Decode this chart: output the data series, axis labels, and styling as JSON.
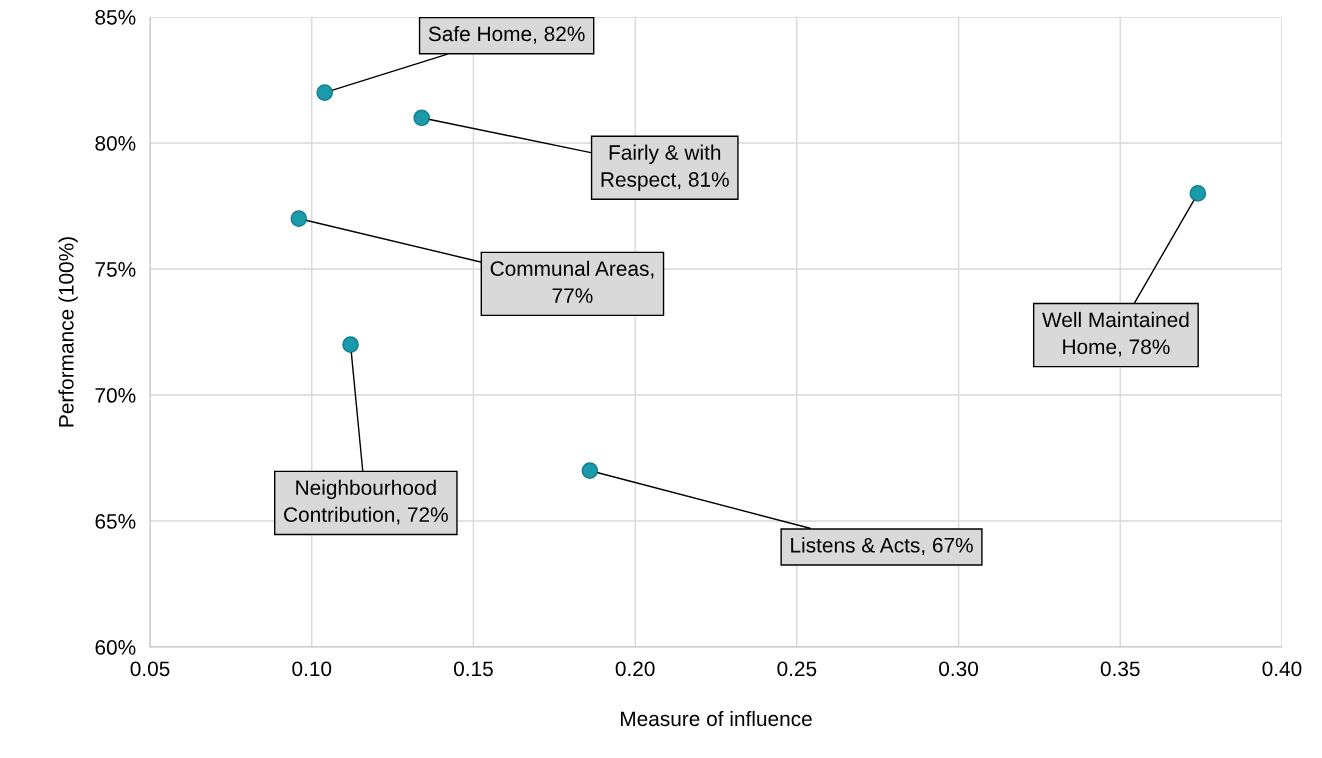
{
  "chart_data": {
    "type": "scatter",
    "xlabel": "Measure of influence",
    "ylabel": "Performance (100%)",
    "x": [
      0.104,
      0.134,
      0.096,
      0.112,
      0.186,
      0.374
    ],
    "series": [
      {
        "color": "#1b9aaa",
        "values": [
          82,
          81,
          77,
          72,
          67,
          78
        ]
      }
    ],
    "xlim": [
      0.05,
      0.4
    ],
    "xticks": [
      {
        "value": 0.05,
        "label": "0.05"
      },
      {
        "value": 0.1,
        "label": "0.10"
      },
      {
        "value": 0.15,
        "label": "0.15"
      },
      {
        "value": 0.2,
        "label": "0.20"
      },
      {
        "value": 0.25,
        "label": "0.25"
      },
      {
        "value": 0.3,
        "label": "0.30"
      },
      {
        "value": 0.35,
        "label": "0.35"
      },
      {
        "value": 0.4,
        "label": "0.40"
      }
    ],
    "ylim": [
      60,
      85
    ],
    "yticks": [
      {
        "value": 60,
        "label": "60%"
      },
      {
        "value": 65,
        "label": "65%"
      },
      {
        "value": 70,
        "label": "70%"
      },
      {
        "value": 75,
        "label": "75%"
      },
      {
        "value": 80,
        "label": "80%"
      },
      {
        "value": 85,
        "label": "85%"
      }
    ],
    "grid": true,
    "marker": "circle",
    "annotations": [
      {
        "text": "Safe Home, 82%",
        "x": 0.104,
        "y": 82
      },
      {
        "text": "Fairly & with\nRespect, 81%",
        "x": 0.134,
        "y": 81
      },
      {
        "text": "Communal Areas,\n77%",
        "x": 0.096,
        "y": 77
      },
      {
        "text": "Neighbourhood\nContribution, 72%",
        "x": 0.112,
        "y": 72
      },
      {
        "text": "Listens & Acts, 67%",
        "x": 0.186,
        "y": 67
      },
      {
        "text": "Well Maintained\nHome, 78%",
        "x": 0.374,
        "y": 78
      }
    ]
  }
}
